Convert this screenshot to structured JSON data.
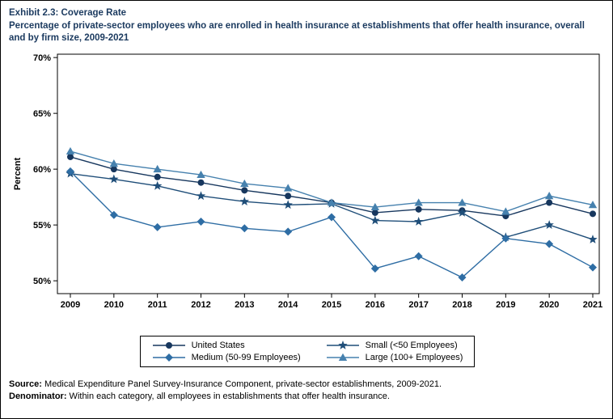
{
  "title": {
    "line1": "Exhibit 2.3: Coverage Rate",
    "line2": "Percentage of private-sector employees who are enrolled in health insurance at establishments that offer health insurance, overall and by firm size, 2009-2021"
  },
  "chart_data": {
    "type": "line",
    "title": "Coverage Rate: Percentage of private-sector employees who are enrolled in health insurance at establishments that offer health insurance, overall and by firm size, 2009-2021",
    "xlabel": "",
    "ylabel": "Percent",
    "x": [
      2009,
      2010,
      2011,
      2012,
      2013,
      2014,
      2015,
      2016,
      2017,
      2018,
      2019,
      2020,
      2021
    ],
    "ylim": [
      48.85,
      70.3
    ],
    "yticks": [
      50,
      55,
      60,
      65,
      70
    ],
    "ytick_suffix": "%",
    "grid": false,
    "legend_position": "bottom",
    "series": [
      {
        "name": "United States",
        "marker": "circle",
        "color": "#17375E",
        "values": [
          61.1,
          60.0,
          59.3,
          58.8,
          58.1,
          57.6,
          57.0,
          56.1,
          56.4,
          56.3,
          55.8,
          57.0,
          56.0
        ]
      },
      {
        "name": "Small (<50 Employees)",
        "marker": "star",
        "color": "#1F4E79",
        "values": [
          59.6,
          59.1,
          58.5,
          57.6,
          57.1,
          56.8,
          56.9,
          55.4,
          55.3,
          56.1,
          53.9,
          55.0,
          53.7
        ]
      },
      {
        "name": "Medium (50-99 Employees)",
        "marker": "diamond",
        "color": "#2E6DA4",
        "values": [
          59.8,
          55.9,
          54.8,
          55.3,
          54.7,
          54.4,
          55.7,
          51.1,
          52.2,
          50.3,
          53.8,
          53.3,
          51.2
        ]
      },
      {
        "name": "Large (100+ Employees)",
        "marker": "triangle",
        "color": "#4681AE",
        "values": [
          61.6,
          60.5,
          60.0,
          59.5,
          58.7,
          58.3,
          57.0,
          56.6,
          57.0,
          57.0,
          56.2,
          57.6,
          56.8
        ]
      }
    ]
  },
  "footer": {
    "source_label": "Source:",
    "source_text": " Medical Expenditure Panel Survey-Insurance Component, private-sector establishments, 2009-2021.",
    "denominator_label": "Denominator:",
    "denominator_text": " Within each category, all employees in establishments that offer health insurance."
  }
}
